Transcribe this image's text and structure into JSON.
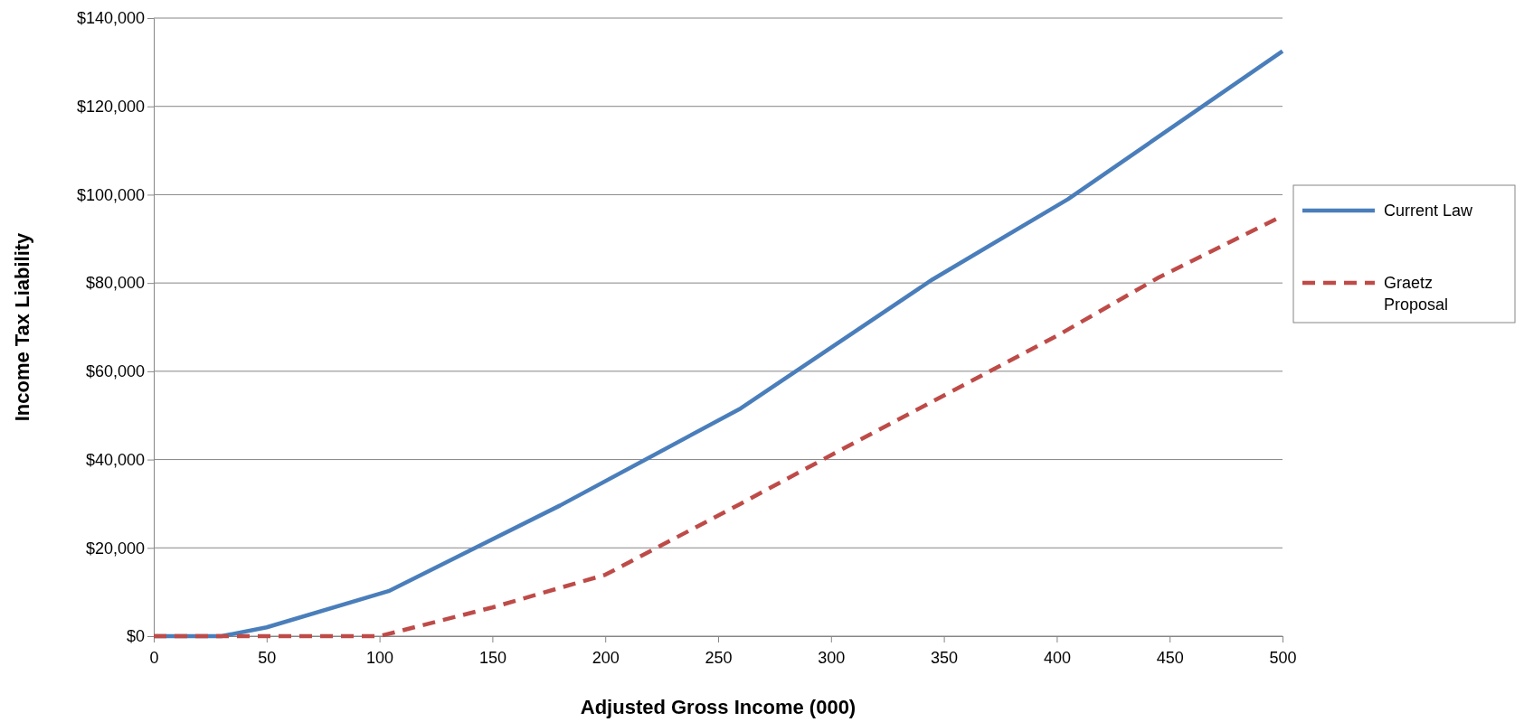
{
  "chart_data": {
    "type": "line",
    "xlabel": "Adjusted Gross Income (000)",
    "ylabel": "Income Tax Liability",
    "xlim": [
      0,
      500
    ],
    "xticks": [
      0,
      50,
      100,
      150,
      200,
      250,
      300,
      350,
      400,
      450,
      500
    ],
    "ylim": [
      0,
      140000
    ],
    "yticks": [
      {
        "value": 0,
        "label": "$0"
      },
      {
        "value": 20000,
        "label": "$20,000"
      },
      {
        "value": 40000,
        "label": "$40,000"
      },
      {
        "value": 60000,
        "label": "$60,000"
      },
      {
        "value": 80000,
        "label": "$80,000"
      },
      {
        "value": 100000,
        "label": "$100,000"
      },
      {
        "value": 120000,
        "label": "$120,000"
      },
      {
        "value": 140000,
        "label": "$140,000"
      }
    ],
    "grid": "y",
    "legend": "right",
    "marker": "none",
    "series": [
      {
        "name": "Current Law",
        "color": "#4a7ebb",
        "line_style": "solid",
        "x": [
          0,
          30,
          50,
          104,
          180,
          260,
          345,
          405,
          500
        ],
        "values": [
          0,
          0,
          2000,
          10200,
          29600,
          51600,
          80800,
          99000,
          132500
        ]
      },
      {
        "name": "Graetz Proposal",
        "color": "#be4b48",
        "line_style": "dashed",
        "x": [
          0,
          100,
          150,
          200,
          260,
          300,
          400,
          445,
          500
        ],
        "values": [
          0,
          0,
          6500,
          13900,
          30000,
          41000,
          68000,
          81200,
          95200
        ]
      }
    ]
  }
}
